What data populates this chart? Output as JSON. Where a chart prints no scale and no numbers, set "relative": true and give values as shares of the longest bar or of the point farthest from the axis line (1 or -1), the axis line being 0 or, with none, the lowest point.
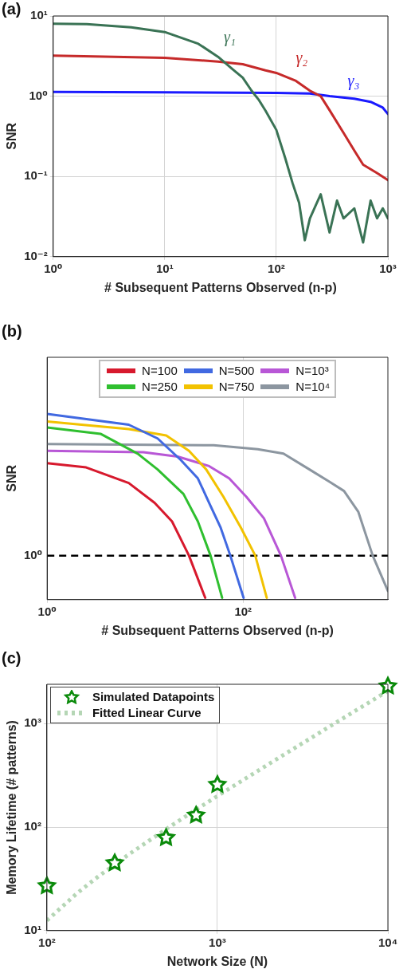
{
  "chart_data": [
    {
      "type": "line",
      "title": "(a)",
      "xlabel": "# Subsequent Patterns Observed (n-p)",
      "ylabel": "SNR",
      "log": "xy",
      "grid": true,
      "xlim": [
        1,
        1000
      ],
      "xticks": [
        {
          "value": 1,
          "label": "10⁰"
        },
        {
          "value": 10,
          "label": "10¹"
        },
        {
          "value": 100,
          "label": "10²"
        },
        {
          "value": 1000,
          "label": "10³"
        }
      ],
      "ylim": [
        0.01,
        10
      ],
      "yticks": [
        {
          "value": 0.01,
          "label": "10⁻²"
        },
        {
          "value": 0.1,
          "label": "10⁻¹"
        },
        {
          "value": 1,
          "label": "10⁰"
        },
        {
          "value": 10,
          "label": "10¹"
        }
      ],
      "series": [
        {
          "name": "γ₁",
          "color": "#3a7355",
          "x": [
            1,
            2,
            5,
            10,
            20,
            30,
            40,
            50,
            60,
            70,
            80,
            100,
            120,
            140,
            160,
            180,
            200,
            250,
            300,
            350,
            400,
            500,
            600,
            700,
            800,
            900,
            1000
          ],
          "values": [
            8,
            7.9,
            7.2,
            6.3,
            4.5,
            3.1,
            2.2,
            1.7,
            1.17,
            0.89,
            0.66,
            0.38,
            0.17,
            0.082,
            0.047,
            0.016,
            0.03,
            0.06,
            0.02,
            0.05,
            0.03,
            0.04,
            0.015,
            0.05,
            0.03,
            0.04,
            0.03
          ]
        },
        {
          "name": "γ₂",
          "color": "#c62a2a",
          "x": [
            1,
            10,
            30,
            50,
            80,
            100,
            150,
            200,
            250,
            300,
            400,
            500,
            600,
            800,
            1000
          ],
          "values": [
            3.2,
            3.0,
            2.7,
            2.5,
            2.1,
            1.95,
            1.55,
            1.17,
            1.0,
            0.67,
            0.35,
            0.21,
            0.14,
            0.11,
            0.09
          ]
        },
        {
          "name": "γ₃",
          "color": "#1a1aff",
          "x": [
            1,
            10,
            100,
            200,
            300,
            500,
            700,
            900,
            1000
          ],
          "values": [
            1.13,
            1.12,
            1.1,
            1.08,
            1.0,
            0.93,
            0.85,
            0.72,
            0.6
          ]
        }
      ]
    },
    {
      "type": "line",
      "title": "(b)",
      "xlabel": "# Subsequent Patterns Observed (n-p)",
      "ylabel": "SNR",
      "log": "x",
      "grid": "x",
      "legend": "top",
      "relative": true,
      "xlim": [
        1,
        3000
      ],
      "xticks": [
        {
          "value": 1,
          "label": "10⁰"
        },
        {
          "value": 100,
          "label": "10²"
        }
      ],
      "ref_lines": [
        {
          "axis": "y",
          "value": 0.237,
          "label": "10⁰",
          "color": "#000000",
          "line_style": "dashed"
        }
      ],
      "series": [
        {
          "name": "N=100",
          "color": "#d7192d",
          "x": [
            1,
            2.5,
            6.8,
            12.5,
            18.8,
            28,
            41
          ],
          "values": [
            0.735,
            0.712,
            0.628,
            0.521,
            0.421,
            0.237,
            0.01
          ]
        },
        {
          "name": "N=250",
          "color": "#2fbf2f",
          "x": [
            1,
            3.5,
            8.4,
            13.4,
            24.6,
            34.5,
            46.5,
            61
          ],
          "values": [
            0.927,
            0.893,
            0.786,
            0.701,
            0.569,
            0.421,
            0.237,
            0.01
          ]
        },
        {
          "name": "N=500",
          "color": "#4169e1",
          "x": [
            1,
            6.8,
            13.4,
            23,
            34.5,
            45,
            59,
            74,
            101
          ],
          "values": [
            1.0,
            0.942,
            0.868,
            0.753,
            0.653,
            0.521,
            0.387,
            0.237,
            0.01
          ]
        },
        {
          "name": "N=750",
          "color": "#f2c200",
          "x": [
            1,
            6.8,
            16.4,
            28,
            42,
            63,
            95,
            133,
            174
          ],
          "values": [
            0.959,
            0.918,
            0.884,
            0.801,
            0.701,
            0.553,
            0.387,
            0.237,
            0.01
          ]
        },
        {
          "name": "N=10³",
          "color": "#b857d6",
          "x": [
            1,
            9.6,
            21.5,
            45,
            72,
            108,
            163,
            243,
            339
          ],
          "values": [
            0.801,
            0.794,
            0.77,
            0.719,
            0.653,
            0.553,
            0.438,
            0.237,
            0.01
          ]
        },
        {
          "name": "N=10⁴",
          "color": "#8c96a0",
          "x": [
            1,
            50,
            141,
            258,
            475,
            765,
            1070,
            1500,
            2100,
            3000
          ],
          "values": [
            0.838,
            0.831,
            0.81,
            0.786,
            0.701,
            0.634,
            0.585,
            0.472,
            0.237,
            0.047
          ]
        }
      ]
    },
    {
      "type": "scatter",
      "title": "(c)",
      "xlabel": "Network Size (N)",
      "ylabel": "Memory Lifetime (# patterns)",
      "log": "xy",
      "grid": true,
      "legend": "top left",
      "xlim": [
        100,
        10000
      ],
      "xticks": [
        {
          "value": 100,
          "label": "10²"
        },
        {
          "value": 1000,
          "label": "10³"
        },
        {
          "value": 10000,
          "label": "10⁴"
        }
      ],
      "ylim": [
        10,
        2400
      ],
      "yticks": [
        {
          "value": 10,
          "label": "10¹"
        },
        {
          "value": 100,
          "label": "10²"
        },
        {
          "value": 1000,
          "label": "10³"
        }
      ],
      "series": [
        {
          "name": "Simulated Datapoints",
          "type": "scatter",
          "marker": "star",
          "color": "#0a8a0a",
          "x": [
            100,
            250,
            500,
            750,
            1000,
            10000
          ],
          "values": [
            27,
            45,
            79,
            130,
            257,
            2300
          ]
        },
        {
          "name": "Fitted Linear Curve",
          "type": "line",
          "line_style": "dotted",
          "color": "#b5d6b5",
          "x": [
            100,
            150,
            200,
            300,
            500,
            750,
            1000,
            2000,
            5000,
            10000
          ],
          "values": [
            12.5,
            22.9,
            33.3,
            54,
            95.6,
            147.6,
            199.5,
            407,
            1031,
            2070
          ]
        }
      ]
    }
  ]
}
